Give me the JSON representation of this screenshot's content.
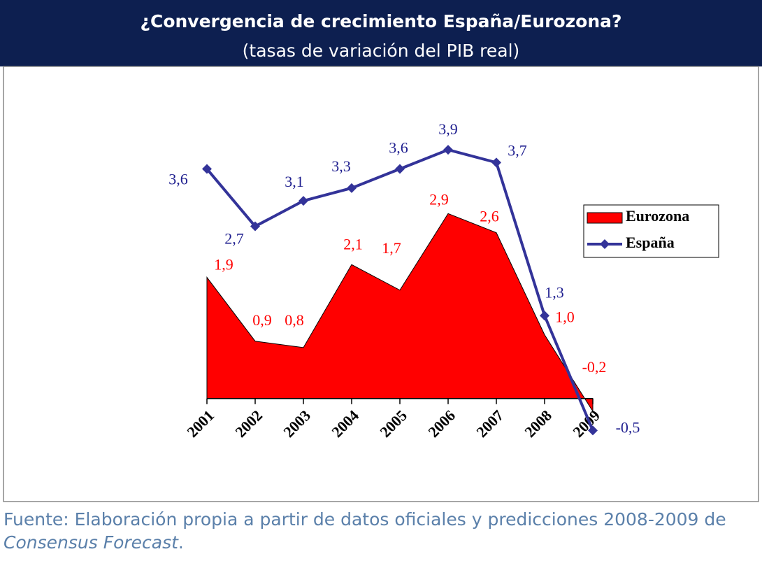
{
  "chart_data": {
    "type": "line-area",
    "title": "¿Convergencia de crecimiento España/Eurozona?",
    "subtitle": "(tasas de variación del PIB real)",
    "categories": [
      "2001",
      "2002",
      "2003",
      "2004",
      "2005",
      "2006",
      "2007",
      "2008",
      "2009"
    ],
    "series": [
      {
        "name": "Eurozona",
        "kind": "area",
        "color": "#ff0000",
        "label_color": "#ff0000",
        "values": [
          1.9,
          0.9,
          0.8,
          2.1,
          1.7,
          2.9,
          2.6,
          1.0,
          -0.2
        ],
        "value_labels": [
          "1,9",
          "0,9",
          "0,8",
          "2,1",
          "1,7",
          "2,9",
          "2,6",
          "1,0",
          "-0,2"
        ]
      },
      {
        "name": "España",
        "kind": "line",
        "color": "#333399",
        "label_color": "#1f1f8f",
        "values": [
          3.6,
          2.7,
          3.1,
          3.3,
          3.6,
          3.9,
          3.7,
          1.3,
          -0.5
        ],
        "value_labels": [
          "3,6",
          "2,7",
          "3,1",
          "3,3",
          "3,6",
          "3,9",
          "3,7",
          "1,3",
          "-0,5"
        ]
      }
    ],
    "ylim": [
      -1,
      4
    ],
    "legend": "right",
    "source": {
      "prefix": "Fuente: Elaboración propia a partir de datos oficiales y predicciones 2008-2009 de ",
      "italic": "Consensus Forecast",
      "suffix": "."
    }
  }
}
